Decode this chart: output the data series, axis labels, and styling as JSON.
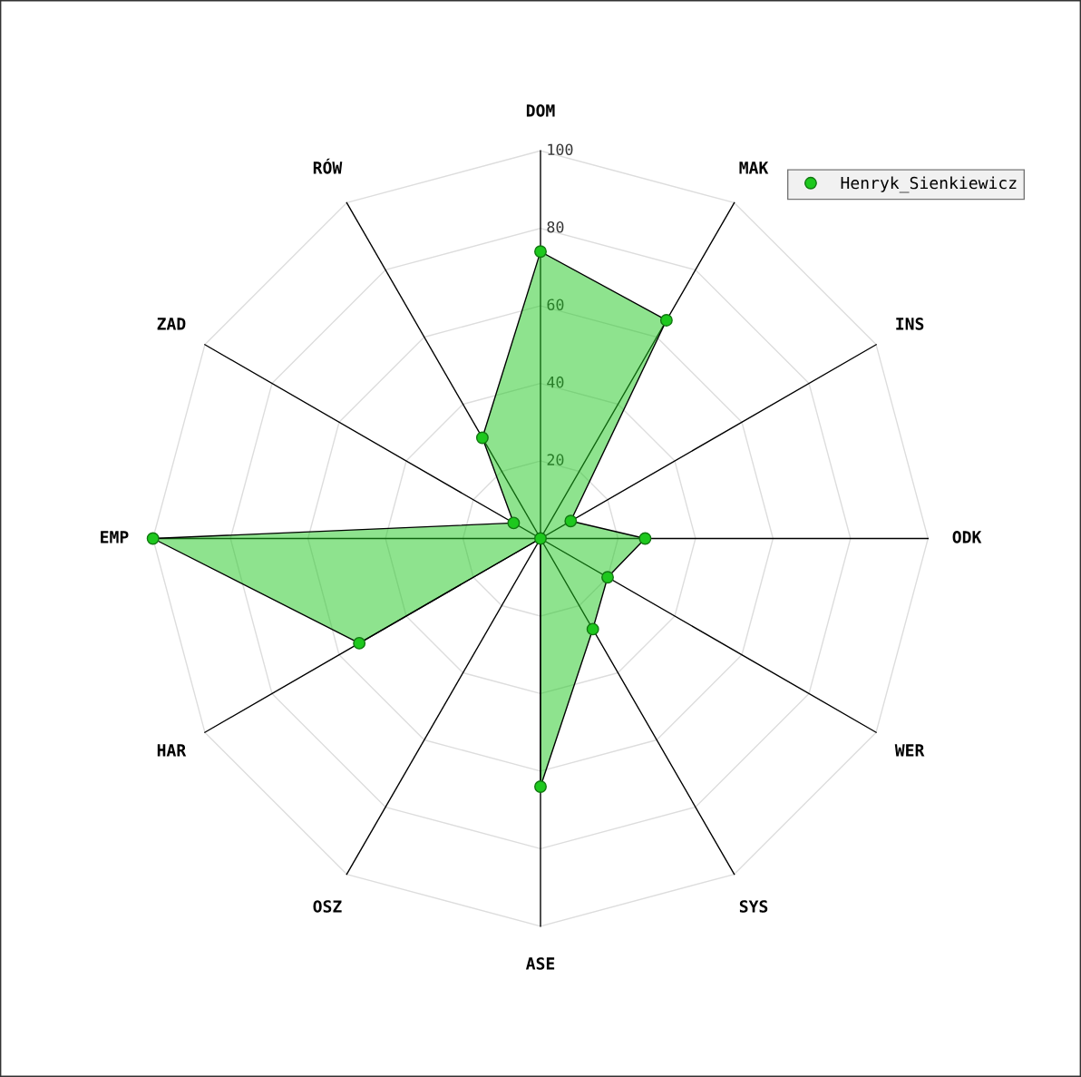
{
  "chart_data": {
    "type": "radar",
    "categories": [
      "DOM",
      "MAK",
      "INS",
      "ODK",
      "WER",
      "SYS",
      "ASE",
      "OSZ",
      "HAR",
      "EMP",
      "ZAD",
      "RÓW"
    ],
    "series": [
      {
        "name": "Henryk_Sienkiewicz",
        "color": "#1ec81e",
        "values": [
          74,
          65,
          9,
          27,
          20,
          27,
          64,
          0,
          54,
          100,
          8,
          30
        ]
      }
    ],
    "ylim": [
      0,
      100
    ],
    "yticks": [
      20,
      40,
      60,
      80,
      100
    ],
    "grid": true,
    "legend": "top right",
    "marker": "circle"
  }
}
